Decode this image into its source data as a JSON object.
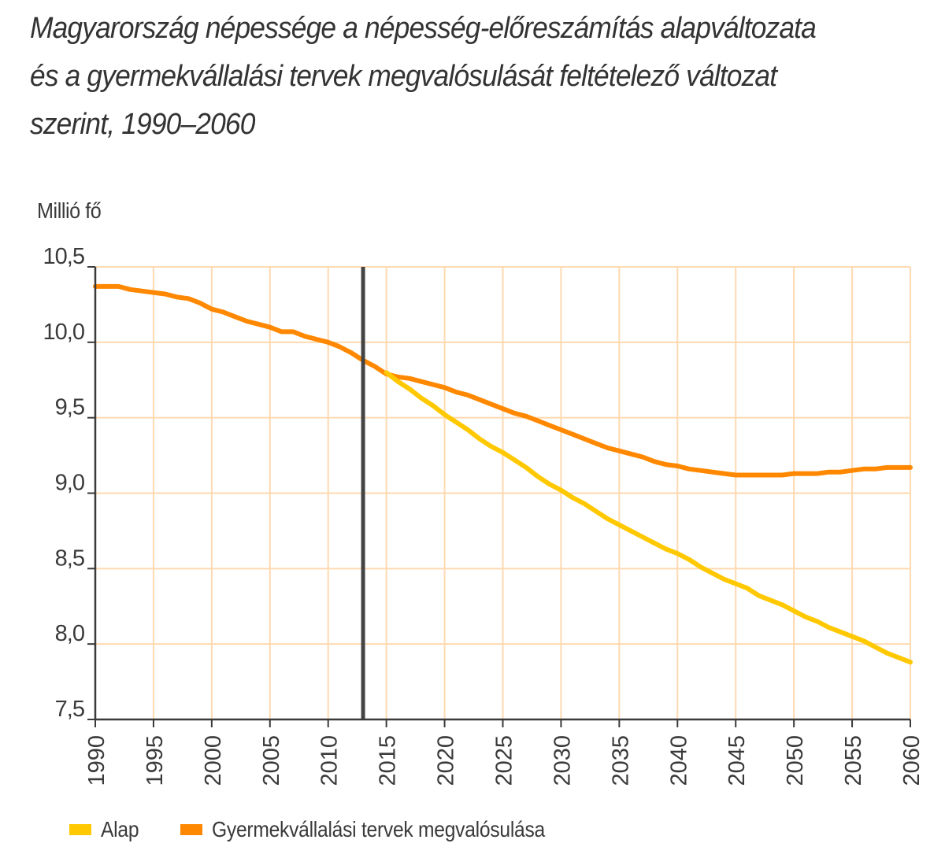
{
  "title_lines": [
    "Magyarország népessége a népesség-előreszámítás alapváltozata",
    "és a gyermekvállalási tervek megvalósulását feltételező változat",
    "szerint, 1990–2060"
  ],
  "colors": {
    "alap": "#FFC800",
    "gyermek": "#FF8800",
    "grid": "#FFD9B0",
    "axis": "#3a3a3a",
    "marker": "#444444"
  },
  "chart_data": {
    "type": "line",
    "title": "Magyarország népessége a népesség-előreszámítás alapváltozata és a gyermekvállalási tervek megvalósulását feltételező változat szerint, 1990–2060",
    "ylabel": "Millió fő",
    "xlabel": "",
    "xlim": [
      1990,
      2060
    ],
    "ylim": [
      7.5,
      10.5
    ],
    "grid": true,
    "legend_position": "bottom-left",
    "x_ticks": [
      "1990",
      "1995",
      "2000",
      "2005",
      "2010",
      "2015",
      "2020",
      "2025",
      "2030",
      "2035",
      "2040",
      "2045",
      "2050",
      "2055",
      "2060"
    ],
    "y_ticks": [
      "10,5",
      "10,0",
      "9,5",
      "9,0",
      "8,5",
      "8,0",
      "7,5"
    ],
    "y_tick_values": [
      10.5,
      10.0,
      9.5,
      9.0,
      8.5,
      8.0,
      7.5
    ],
    "annotations": [
      {
        "type": "vertical-line",
        "x": 2013
      }
    ],
    "series": [
      {
        "name": "Alap",
        "color": "#FFC800",
        "x": [
          2015,
          2016,
          2017,
          2018,
          2019,
          2020,
          2021,
          2022,
          2023,
          2024,
          2025,
          2026,
          2027,
          2028,
          2029,
          2030,
          2031,
          2032,
          2033,
          2034,
          2035,
          2036,
          2037,
          2038,
          2039,
          2040,
          2041,
          2042,
          2043,
          2044,
          2045,
          2046,
          2047,
          2048,
          2049,
          2050,
          2051,
          2052,
          2053,
          2054,
          2055,
          2056,
          2057,
          2058,
          2059,
          2060
        ],
        "y": [
          9.8,
          9.74,
          9.69,
          9.63,
          9.58,
          9.52,
          9.47,
          9.42,
          9.36,
          9.31,
          9.27,
          9.22,
          9.17,
          9.11,
          9.06,
          9.02,
          8.97,
          8.93,
          8.88,
          8.83,
          8.79,
          8.75,
          8.71,
          8.67,
          8.63,
          8.6,
          8.56,
          8.51,
          8.47,
          8.43,
          8.4,
          8.37,
          8.32,
          8.29,
          8.26,
          8.22,
          8.18,
          8.15,
          8.11,
          8.08,
          8.05,
          8.02,
          7.98,
          7.94,
          7.91,
          7.88
        ]
      },
      {
        "name": "Gyermekvállalási tervek megvalósulása",
        "color": "#FF8800",
        "x": [
          1990,
          1991,
          1992,
          1993,
          1994,
          1995,
          1996,
          1997,
          1998,
          1999,
          2000,
          2001,
          2002,
          2003,
          2004,
          2005,
          2006,
          2007,
          2008,
          2009,
          2010,
          2011,
          2012,
          2013,
          2014,
          2015,
          2016,
          2017,
          2018,
          2019,
          2020,
          2021,
          2022,
          2023,
          2024,
          2025,
          2026,
          2027,
          2028,
          2029,
          2030,
          2031,
          2032,
          2033,
          2034,
          2035,
          2036,
          2037,
          2038,
          2039,
          2040,
          2041,
          2042,
          2043,
          2044,
          2045,
          2046,
          2047,
          2048,
          2049,
          2050,
          2051,
          2052,
          2053,
          2054,
          2055,
          2056,
          2057,
          2058,
          2059,
          2060
        ],
        "y": [
          10.37,
          10.37,
          10.37,
          10.35,
          10.34,
          10.33,
          10.32,
          10.3,
          10.29,
          10.26,
          10.22,
          10.2,
          10.17,
          10.14,
          10.12,
          10.1,
          10.07,
          10.07,
          10.04,
          10.02,
          10.0,
          9.97,
          9.93,
          9.88,
          9.84,
          9.79,
          9.77,
          9.76,
          9.74,
          9.72,
          9.7,
          9.67,
          9.65,
          9.62,
          9.59,
          9.56,
          9.53,
          9.51,
          9.48,
          9.45,
          9.42,
          9.39,
          9.36,
          9.33,
          9.3,
          9.28,
          9.26,
          9.24,
          9.21,
          9.19,
          9.18,
          9.16,
          9.15,
          9.14,
          9.13,
          9.12,
          9.12,
          9.12,
          9.12,
          9.12,
          9.13,
          9.13,
          9.13,
          9.14,
          9.14,
          9.15,
          9.16,
          9.16,
          9.17,
          9.17,
          9.17
        ]
      }
    ]
  },
  "legend": [
    {
      "label": "Alap",
      "color": "#FFC800"
    },
    {
      "label": "Gyermekvállalási tervek megvalósulása",
      "color": "#FF8800"
    }
  ]
}
